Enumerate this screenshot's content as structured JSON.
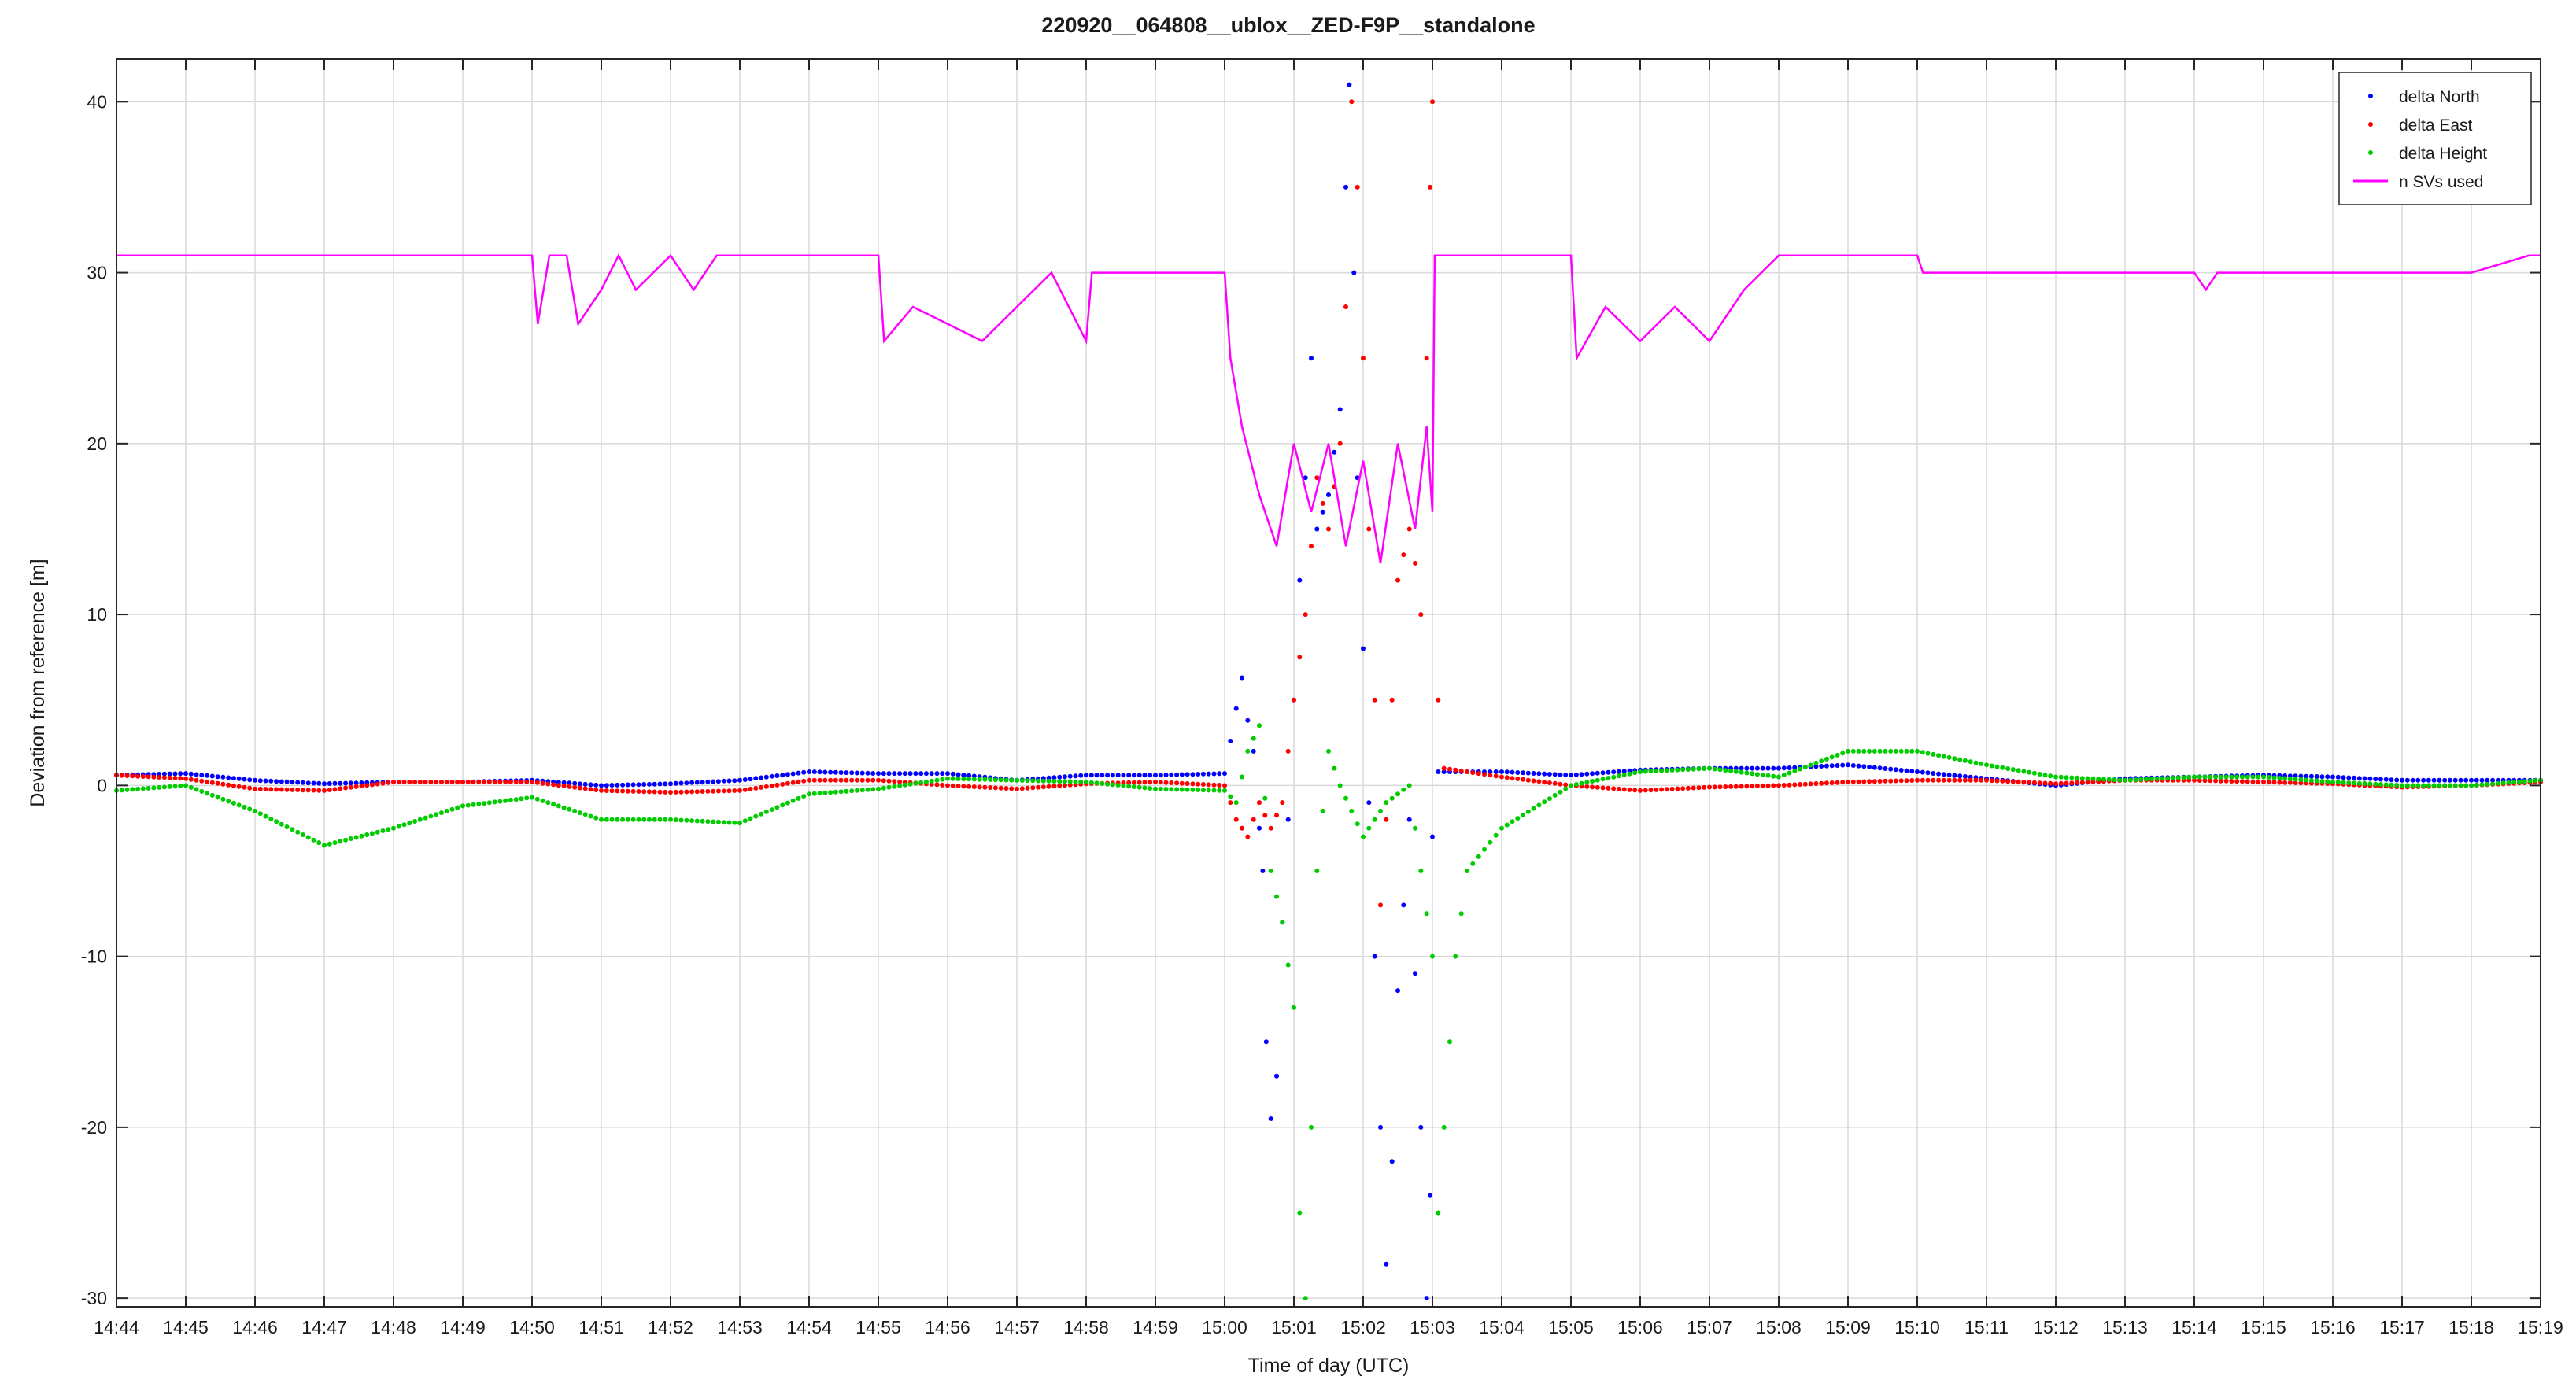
{
  "chart_data": {
    "type": "scatter",
    "title": "220920__064808__ublox__ZED-F9P__standalone",
    "xlabel": "Time of day (UTC)",
    "ylabel": "Deviation from reference [m]",
    "x_unit": "time of day HH:MM",
    "xlim": [
      "14:44",
      "15:19"
    ],
    "ylim": [
      -30.5,
      42.5
    ],
    "x_ticks": [
      "14:44",
      "14:45",
      "14:46",
      "14:47",
      "14:48",
      "14:49",
      "14:50",
      "14:51",
      "14:52",
      "14:53",
      "14:54",
      "14:55",
      "14:56",
      "14:57",
      "14:58",
      "14:59",
      "15:00",
      "15:01",
      "15:02",
      "15:03",
      "15:04",
      "15:05",
      "15:06",
      "15:07",
      "15:08",
      "15:09",
      "15:10",
      "15:11",
      "15:12",
      "15:13",
      "15:14",
      "15:15",
      "15:16",
      "15:17",
      "15:18",
      "15:19"
    ],
    "y_ticks": [
      "-30",
      "-20",
      "-10",
      "0",
      "10",
      "20",
      "30",
      "40"
    ],
    "y_tick_values": [
      -30,
      -20,
      -10,
      0,
      10,
      20,
      30,
      40
    ],
    "grid": true,
    "legend_position": "top-right",
    "series": [
      {
        "name": "delta North",
        "color": "#0000ff",
        "style": "dots",
        "points": [
          [
            "14:44",
            0.6
          ],
          [
            "14:45",
            0.7
          ],
          [
            "14:46",
            0.3
          ],
          [
            "14:47",
            0.1
          ],
          [
            "14:48",
            0.2
          ],
          [
            "14:49",
            0.2
          ],
          [
            "14:50",
            0.3
          ],
          [
            "14:51",
            0.0
          ],
          [
            "14:52",
            0.1
          ],
          [
            "14:53",
            0.3
          ],
          [
            "14:54",
            0.8
          ],
          [
            "14:55",
            0.7
          ],
          [
            "14:56",
            0.7
          ],
          [
            "14:57",
            0.3
          ],
          [
            "14:58",
            0.6
          ],
          [
            "14:59",
            0.6
          ],
          [
            "15:00",
            0.7
          ],
          [
            "15:00:10",
            4.5
          ],
          [
            "15:00:15",
            6.3
          ],
          [
            "15:00:20",
            3.8
          ],
          [
            "15:00:25",
            2.0
          ],
          [
            "15:00:30",
            -2.5
          ],
          [
            "15:00:33",
            -5.0
          ],
          [
            "15:00:36",
            -15.0
          ],
          [
            "15:00:40",
            -19.5
          ],
          [
            "15:00:45",
            -17.0
          ],
          [
            "15:00:50",
            -8.0
          ],
          [
            "15:00:55",
            -2.0
          ],
          [
            "15:01:00",
            5.0
          ],
          [
            "15:01:05",
            12.0
          ],
          [
            "15:01:10",
            18.0
          ],
          [
            "15:01:15",
            25.0
          ],
          [
            "15:01:20",
            15.0
          ],
          [
            "15:01:30",
            17.0
          ],
          [
            "15:01:40",
            22.0
          ],
          [
            "15:01:45",
            35.0
          ],
          [
            "15:01:48",
            41.0
          ],
          [
            "15:01:52",
            30.0
          ],
          [
            "15:01:55",
            18.0
          ],
          [
            "15:02:00",
            8.0
          ],
          [
            "15:02:05",
            -1.0
          ],
          [
            "15:02:10",
            -10.0
          ],
          [
            "15:02:15",
            -20.0
          ],
          [
            "15:02:20",
            -28.0
          ],
          [
            "15:02:25",
            -22.0
          ],
          [
            "15:02:30",
            -12.0
          ],
          [
            "15:02:40",
            -2.0
          ],
          [
            "15:02:50",
            -20.0
          ],
          [
            "15:02:55",
            -30.0
          ],
          [
            "15:02:58",
            -24.0
          ],
          [
            "15:03:00",
            -3.0
          ],
          [
            "15:03:05",
            0.8
          ],
          [
            "15:04",
            0.8
          ],
          [
            "15:05",
            0.6
          ],
          [
            "15:06",
            0.9
          ],
          [
            "15:07",
            1.0
          ],
          [
            "15:08",
            1.0
          ],
          [
            "15:09",
            1.2
          ],
          [
            "15:10",
            0.8
          ],
          [
            "15:11",
            0.4
          ],
          [
            "15:12",
            0.0
          ],
          [
            "15:13",
            0.4
          ],
          [
            "15:14",
            0.5
          ],
          [
            "15:15",
            0.6
          ],
          [
            "15:16",
            0.5
          ],
          [
            "15:17",
            0.3
          ],
          [
            "15:18",
            0.3
          ],
          [
            "15:19",
            0.3
          ]
        ]
      },
      {
        "name": "delta East",
        "color": "#ff0000",
        "style": "dots",
        "points": [
          [
            "14:44",
            0.6
          ],
          [
            "14:45",
            0.4
          ],
          [
            "14:46",
            -0.2
          ],
          [
            "14:47",
            -0.3
          ],
          [
            "14:48",
            0.2
          ],
          [
            "14:49",
            0.2
          ],
          [
            "14:50",
            0.2
          ],
          [
            "14:51",
            -0.3
          ],
          [
            "14:52",
            -0.4
          ],
          [
            "14:53",
            -0.3
          ],
          [
            "14:54",
            0.3
          ],
          [
            "14:55",
            0.3
          ],
          [
            "14:56",
            0.0
          ],
          [
            "14:57",
            -0.2
          ],
          [
            "14:58",
            0.1
          ],
          [
            "14:59",
            0.2
          ],
          [
            "15:00",
            0.0
          ],
          [
            "15:00:10",
            -2.0
          ],
          [
            "15:00:20",
            -3.0
          ],
          [
            "15:00:30",
            -1.0
          ],
          [
            "15:00:40",
            -2.5
          ],
          [
            "15:00:50",
            -1.0
          ],
          [
            "15:01:00",
            5.0
          ],
          [
            "15:01:10",
            10.0
          ],
          [
            "15:01:20",
            18.0
          ],
          [
            "15:01:30",
            15.0
          ],
          [
            "15:01:40",
            20.0
          ],
          [
            "15:01:45",
            28.0
          ],
          [
            "15:01:50",
            40.0
          ],
          [
            "15:01:55",
            35.0
          ],
          [
            "15:02:00",
            25.0
          ],
          [
            "15:02:05",
            15.0
          ],
          [
            "15:02:10",
            5.0
          ],
          [
            "15:02:15",
            -7.0
          ],
          [
            "15:02:20",
            -2.0
          ],
          [
            "15:02:25",
            5.0
          ],
          [
            "15:02:30",
            12.0
          ],
          [
            "15:02:40",
            15.0
          ],
          [
            "15:02:45",
            13.0
          ],
          [
            "15:02:50",
            10.0
          ],
          [
            "15:02:55",
            25.0
          ],
          [
            "15:02:58",
            35.0
          ],
          [
            "15:03:00",
            40.0
          ],
          [
            "15:03:05",
            5.0
          ],
          [
            "15:03:10",
            1.0
          ],
          [
            "15:04",
            0.5
          ],
          [
            "15:05",
            0.0
          ],
          [
            "15:06",
            -0.3
          ],
          [
            "15:07",
            -0.1
          ],
          [
            "15:08",
            0.0
          ],
          [
            "15:09",
            0.2
          ],
          [
            "15:10",
            0.3
          ],
          [
            "15:11",
            0.3
          ],
          [
            "15:12",
            0.1
          ],
          [
            "15:13",
            0.3
          ],
          [
            "15:14",
            0.3
          ],
          [
            "15:15",
            0.2
          ],
          [
            "15:16",
            0.1
          ],
          [
            "15:17",
            -0.1
          ],
          [
            "15:18",
            0.0
          ],
          [
            "15:19",
            0.2
          ]
        ]
      },
      {
        "name": "delta Height",
        "color": "#00cc00",
        "style": "dots",
        "points": [
          [
            "14:44",
            -0.3
          ],
          [
            "14:45",
            0.0
          ],
          [
            "14:46",
            -1.5
          ],
          [
            "14:47",
            -3.5
          ],
          [
            "14:48",
            -2.5
          ],
          [
            "14:49",
            -1.2
          ],
          [
            "14:50",
            -0.7
          ],
          [
            "14:51",
            -2.0
          ],
          [
            "14:52",
            -2.0
          ],
          [
            "14:53",
            -2.2
          ],
          [
            "14:54",
            -0.5
          ],
          [
            "14:55",
            -0.2
          ],
          [
            "14:56",
            0.4
          ],
          [
            "14:57",
            0.3
          ],
          [
            "14:58",
            0.2
          ],
          [
            "14:59",
            -0.2
          ],
          [
            "15:00",
            -0.3
          ],
          [
            "15:00:10",
            -1.0
          ],
          [
            "15:00:20",
            2.0
          ],
          [
            "15:00:30",
            3.5
          ],
          [
            "15:00:40",
            -5.0
          ],
          [
            "15:00:50",
            -8.0
          ],
          [
            "15:01:00",
            -13.0
          ],
          [
            "15:01:05",
            -25.0
          ],
          [
            "15:01:10",
            -30.0
          ],
          [
            "15:01:15",
            -20.0
          ],
          [
            "15:01:20",
            -5.0
          ],
          [
            "15:01:30",
            2.0
          ],
          [
            "15:01:40",
            0.0
          ],
          [
            "15:02:00",
            -3.0
          ],
          [
            "15:02:20",
            -1.0
          ],
          [
            "15:02:40",
            0.0
          ],
          [
            "15:03:00",
            -10.0
          ],
          [
            "15:03:05",
            -25.0
          ],
          [
            "15:03:10",
            -20.0
          ],
          [
            "15:03:20",
            -10.0
          ],
          [
            "15:03:30",
            -5.0
          ],
          [
            "15:04",
            -2.5
          ],
          [
            "15:05",
            0.0
          ],
          [
            "15:06",
            0.8
          ],
          [
            "15:07",
            1.0
          ],
          [
            "15:08",
            0.5
          ],
          [
            "15:09",
            2.0
          ],
          [
            "15:10",
            2.0
          ],
          [
            "15:11",
            1.2
          ],
          [
            "15:12",
            0.5
          ],
          [
            "15:13",
            0.3
          ],
          [
            "15:14",
            0.5
          ],
          [
            "15:15",
            0.5
          ],
          [
            "15:16",
            0.2
          ],
          [
            "15:17",
            0.0
          ],
          [
            "15:18",
            0.0
          ],
          [
            "15:19",
            0.3
          ]
        ]
      },
      {
        "name": "n SVs used",
        "color": "#ff00ff",
        "style": "line",
        "points": [
          [
            "14:44",
            31
          ],
          [
            "14:50",
            31
          ],
          [
            "14:50:05",
            27
          ],
          [
            "14:50:15",
            31
          ],
          [
            "14:50:30",
            31
          ],
          [
            "14:50:40",
            27
          ],
          [
            "14:51",
            29
          ],
          [
            "14:51:15",
            31
          ],
          [
            "14:51:30",
            29
          ],
          [
            "14:52",
            31
          ],
          [
            "14:52:20",
            29
          ],
          [
            "14:52:40",
            31
          ],
          [
            "14:53",
            31
          ],
          [
            "14:54",
            31
          ],
          [
            "14:55",
            31
          ],
          [
            "14:55:05",
            26
          ],
          [
            "14:55:30",
            28
          ],
          [
            "14:56",
            27
          ],
          [
            "14:56:30",
            26
          ],
          [
            "14:57",
            28
          ],
          [
            "14:57:30",
            30
          ],
          [
            "14:58",
            26
          ],
          [
            "14:58:05",
            30
          ],
          [
            "14:59",
            30
          ],
          [
            "15:00",
            30
          ],
          [
            "15:00:05",
            25
          ],
          [
            "15:00:15",
            21
          ],
          [
            "15:00:30",
            17
          ],
          [
            "15:00:45",
            14
          ],
          [
            "15:01",
            20
          ],
          [
            "15:01:15",
            16
          ],
          [
            "15:01:30",
            20
          ],
          [
            "15:01:45",
            14
          ],
          [
            "15:02",
            19
          ],
          [
            "15:02:15",
            13
          ],
          [
            "15:02:30",
            20
          ],
          [
            "15:02:45",
            15
          ],
          [
            "15:02:55",
            21
          ],
          [
            "15:03",
            16
          ],
          [
            "15:03:02",
            31
          ],
          [
            "15:04",
            31
          ],
          [
            "15:05",
            31
          ],
          [
            "15:05:05",
            25
          ],
          [
            "15:05:30",
            28
          ],
          [
            "15:06",
            26
          ],
          [
            "15:06:30",
            28
          ],
          [
            "15:07",
            26
          ],
          [
            "15:07:30",
            29
          ],
          [
            "15:08",
            31
          ],
          [
            "15:09",
            31
          ],
          [
            "15:10",
            31
          ],
          [
            "15:10:05",
            30
          ],
          [
            "15:11",
            30
          ],
          [
            "15:12",
            30
          ],
          [
            "15:13",
            30
          ],
          [
            "15:14",
            30
          ],
          [
            "15:14:10",
            29
          ],
          [
            "15:14:20",
            30
          ],
          [
            "15:15",
            30
          ],
          [
            "15:16",
            30
          ],
          [
            "15:17",
            30
          ],
          [
            "15:18",
            30
          ],
          [
            "15:18:50",
            31
          ],
          [
            "15:19",
            31
          ]
        ]
      }
    ]
  }
}
